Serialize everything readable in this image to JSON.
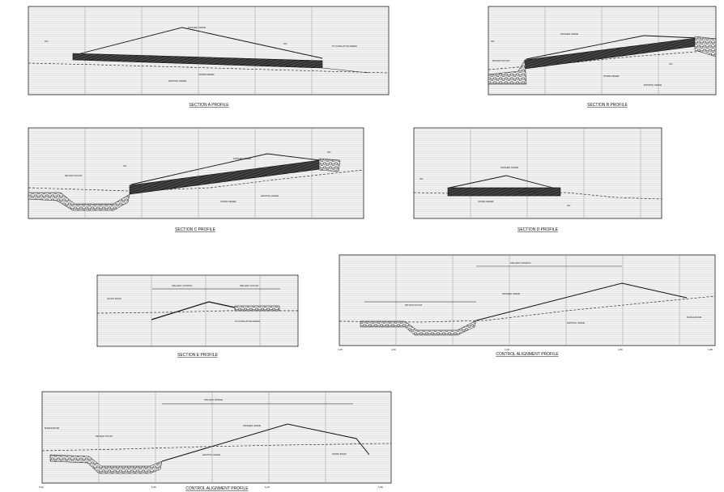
{
  "panels": [
    {
      "id": "a",
      "title": "SECTION A PROFILE",
      "labels": [
        "FINISHED GRADE",
        "EXISTING GRADE",
        "STORM SEWER",
        "TO CUMULATIVE GREEN",
        "INV.",
        "INV."
      ]
    },
    {
      "id": "b",
      "title": "SECTION B PROFILE",
      "labels": [
        "FINISHED GRADE",
        "EXISTING GRADE",
        "STORM SEWER",
        "RIP-RAP OUTLET",
        "INV.",
        "INV."
      ]
    },
    {
      "id": "c",
      "title": "SECTION C PROFILE",
      "labels": [
        "FINISHED GRADE",
        "EXISTING GRADE",
        "STORM SEWER",
        "RIP-RAP OUTLET",
        "INV.",
        "INV."
      ]
    },
    {
      "id": "d",
      "title": "SECTION D PROFILE",
      "labels": [
        "FINISHED GRADE",
        "EXISTING GRADE",
        "STORM SEWER",
        "INV.",
        "INV."
      ]
    },
    {
      "id": "e",
      "title": "SECTION E PROFILE",
      "labels": [
        "SOUTH BASIN",
        "SPILLWAY CONTROL",
        "SPILLWAY OUTLET",
        "TO CUMULATIVE GREEN"
      ]
    },
    {
      "id": "f",
      "title": "CONTROL ALIGNMENT PROFILE",
      "labels": [
        "SPILLWAY CONTROL",
        "FINISHED GRADE",
        "EXISTING GRADE",
        "RIP-RAP OUTLET",
        "MIDDLE BASIN"
      ],
      "stations": [
        "2+25",
        "2+50",
        "3+00",
        "3+50",
        "3+85"
      ]
    },
    {
      "id": "g",
      "title": "CONTROL ALIGNMENT PROFILE",
      "labels": [
        "MIDDLE BASIN",
        "RIP-RAP OUTLET",
        "SPILLWAY MIDDLE",
        "FINISHED GRADE",
        "EXISTING GRADE",
        "NORTH BASIN"
      ],
      "stations": [
        "5+00",
        "5+50",
        "6+00",
        "6+50"
      ]
    }
  ],
  "colors": {
    "ink": "#1a1a1a",
    "grid": "#c8c8c8",
    "pipe": "#3a3a3a"
  }
}
